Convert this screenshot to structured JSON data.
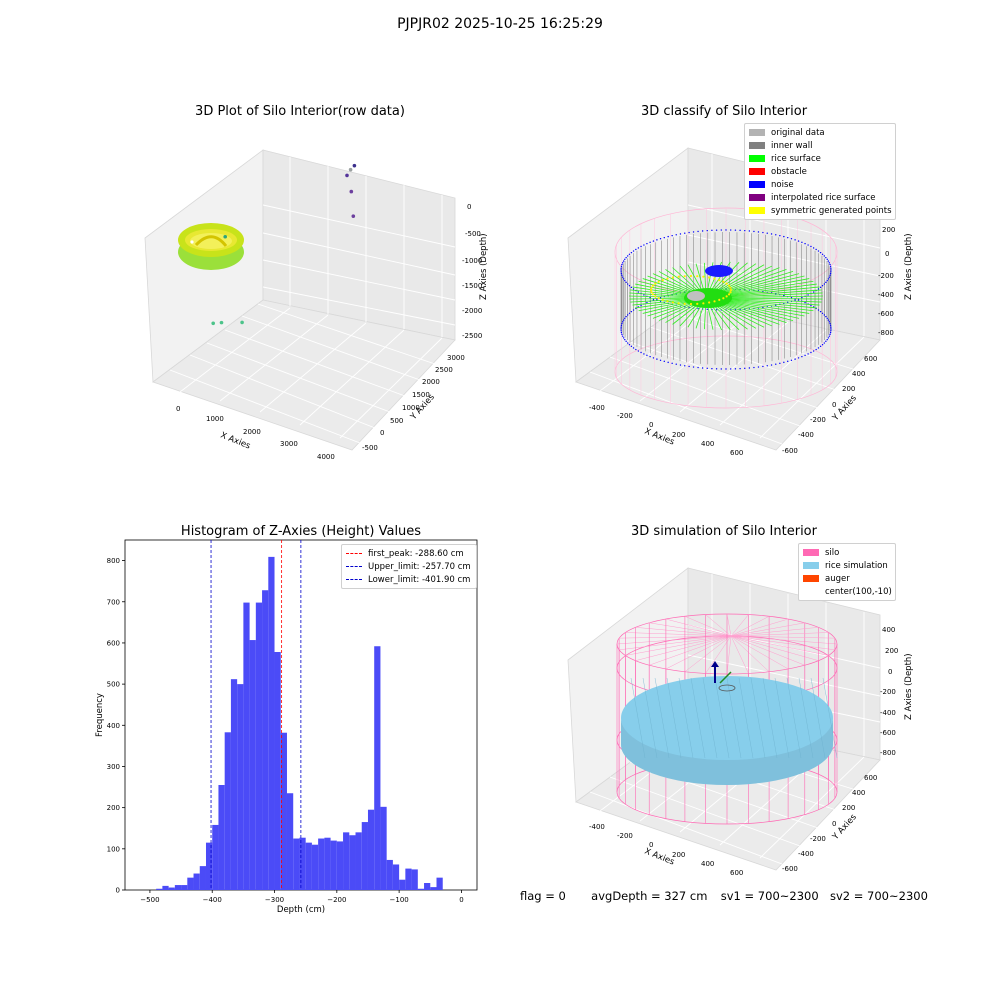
{
  "suptitle": "PJPJR02 2025-10-25 16:25:29",
  "footer": {
    "flag": "flag = 0",
    "avg_depth": "avgDepth = 327 cm",
    "sv1": "sv1 = 700~2300",
    "sv2": "sv2 = 700~2300"
  },
  "colors": {
    "histogram_bar": "#4b4bf7",
    "first_peak": "#ff0000",
    "limit_line": "#0000cc",
    "silo": "#ff69b4",
    "rice": "#87ceeb",
    "auger": "#ff4500",
    "pane": "#f2f2f2"
  },
  "chart_data": [
    {
      "type": "scatter",
      "title": "3D Plot of Silo Interior(row data)",
      "xlabel": "X Axies",
      "ylabel": "Y Axies",
      "zlabel": "Z Axies (Depth)",
      "x_ticks": [
        "0",
        "1000",
        "2000",
        "3000",
        "4000"
      ],
      "y_ticks": [
        "-500",
        "0",
        "500",
        "1000",
        "1500",
        "2000",
        "2500",
        "3000"
      ],
      "z_ticks": [
        "0",
        "-500",
        "-1000",
        "-1500",
        "-2000",
        "-2500"
      ],
      "outlier_points": [
        {
          "x": 600,
          "y": -100,
          "z": -1050
        },
        {
          "x": 750,
          "y": 0,
          "z": -1050
        },
        {
          "x": 1150,
          "y": 200,
          "z": -1050
        },
        {
          "x": 900,
          "y": -100,
          "z": -1800
        },
        {
          "x": 3000,
          "y": 1700,
          "z": -2200
        },
        {
          "x": 3700,
          "y": 600,
          "z": -2100
        },
        {
          "x": 3650,
          "y": 600,
          "z": -2300
        },
        {
          "x": 3600,
          "y": 500,
          "z": -2450
        },
        {
          "x": 3900,
          "y": 300,
          "z": -2600
        }
      ]
    },
    {
      "type": "scatter",
      "title": "3D classify of Silo Interior",
      "xlabel": "X Axies",
      "ylabel": "Y Axies",
      "zlabel": "Z Axies (Depth)",
      "x_ticks": [
        "-400",
        "-200",
        "0",
        "200",
        "400",
        "600"
      ],
      "y_ticks": [
        "-600",
        "-400",
        "-200",
        "0",
        "200",
        "400",
        "600"
      ],
      "z_ticks": [
        "200",
        "0",
        "-200",
        "-400",
        "-600",
        "-800"
      ],
      "legend": [
        {
          "label": "original data",
          "color": "#b3b3b3"
        },
        {
          "label": "inner wall",
          "color": "#808080"
        },
        {
          "label": "rice surface",
          "color": "#00ff00"
        },
        {
          "label": "obstacle",
          "color": "#ff0000"
        },
        {
          "label": "noise",
          "color": "#0000ff"
        },
        {
          "label": "interpolated rice surface",
          "color": "#800080"
        },
        {
          "label": "symmetric generated points",
          "color": "#ffff00"
        }
      ]
    },
    {
      "type": "bar",
      "title": "Histogram of Z-Axies (Height) Values",
      "xlabel": "Depth (cm)",
      "ylabel": "Frequency",
      "xlim": [
        -540,
        25
      ],
      "ylim": [
        0,
        850
      ],
      "x_ticks": [
        -500,
        -400,
        -300,
        -200,
        -100,
        0
      ],
      "y_ticks": [
        0,
        100,
        200,
        300,
        400,
        500,
        600,
        700,
        800
      ],
      "bin_start": -500,
      "bin_width": 10,
      "values": [
        0,
        3,
        10,
        6,
        12,
        12,
        30,
        40,
        58,
        115,
        158,
        255,
        383,
        512,
        500,
        698,
        607,
        698,
        728,
        809,
        578,
        382,
        235,
        125,
        127,
        115,
        110,
        125,
        127,
        120,
        118,
        140,
        133,
        140,
        165,
        195,
        592,
        202,
        73,
        62,
        25,
        52,
        50,
        3,
        17,
        7,
        30
      ],
      "vlines": [
        {
          "label": "first_peak: -288.60 cm",
          "x": -288.6,
          "color": "#ff0000"
        },
        {
          "label": "Upper_limit: -257.70 cm",
          "x": -257.7,
          "color": "#0000cc"
        },
        {
          "label": "Lower_limit: -401.90 cm",
          "x": -401.9,
          "color": "#0000cc"
        }
      ]
    },
    {
      "type": "scatter",
      "title": "3D simulation of Silo Interior",
      "xlabel": "X Axies",
      "ylabel": "Y Axies",
      "zlabel": "Z Axies (Depth)",
      "x_ticks": [
        "-400",
        "-200",
        "0",
        "200",
        "400",
        "600"
      ],
      "y_ticks": [
        "-600",
        "-400",
        "-200",
        "0",
        "200",
        "400",
        "600"
      ],
      "z_ticks": [
        "400",
        "200",
        "0",
        "-200",
        "-400",
        "-600",
        "-800"
      ],
      "legend": [
        {
          "label": "silo",
          "color": "#ff69b4"
        },
        {
          "label": "rice simulation",
          "color": "#87ceeb"
        },
        {
          "label": "auger",
          "color": "#ff4500"
        },
        {
          "label": "center(100,-10)",
          "color": ""
        }
      ]
    }
  ]
}
